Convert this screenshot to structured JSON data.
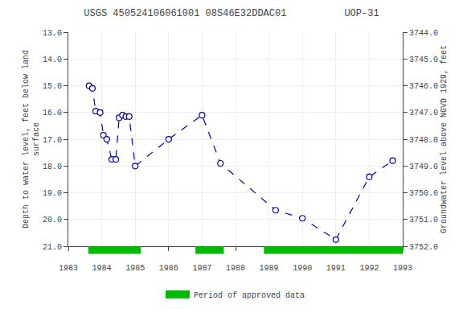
{
  "chart_data": {
    "type": "line",
    "title": "USGS 450524106061001 08S46E32DDAC01          UOP-31",
    "x_label": null,
    "y_label": "Depth to water level, feet below land\nsurface",
    "y2_label": "Groundwater level above NGVD 1929, feet",
    "x": [
      1983.62,
      1983.72,
      1983.82,
      1983.95,
      1984.05,
      1984.15,
      1984.3,
      1984.42,
      1984.52,
      1984.62,
      1984.72,
      1984.82,
      1985.0,
      1986.0,
      1987.0,
      1987.55,
      1989.2,
      1990.0,
      1991.0,
      1992.0,
      1992.7
    ],
    "values": [
      15.0,
      15.1,
      15.95,
      16.0,
      16.85,
      17.0,
      17.75,
      17.75,
      16.2,
      16.1,
      16.15,
      16.15,
      18.0,
      17.0,
      16.1,
      17.9,
      19.65,
      19.95,
      20.75,
      18.4,
      17.8
    ],
    "color": "#0000bb",
    "line_style": "dashed",
    "marker": "circle",
    "xlim": [
      1983,
      1993
    ],
    "xticks": [
      1983,
      1984,
      1985,
      1986,
      1987,
      1988,
      1989,
      1990,
      1991,
      1992,
      1993
    ],
    "ylim": [
      21.0,
      13.0
    ],
    "yticks": [
      {
        "value": 13.0,
        "label": "13.0"
      },
      {
        "value": 14.0,
        "label": "14.0"
      },
      {
        "value": 15.0,
        "label": "15.0"
      },
      {
        "value": 16.0,
        "label": "16.0"
      },
      {
        "value": 17.0,
        "label": "17.0"
      },
      {
        "value": 18.0,
        "label": "18.0"
      },
      {
        "value": 19.0,
        "label": "19.0"
      },
      {
        "value": 20.0,
        "label": "20.0"
      },
      {
        "value": 21.0,
        "label": "21.0"
      }
    ],
    "y2lim": [
      3752.0,
      3744.0
    ],
    "y2ticks": [
      {
        "value": 3752.0,
        "label": "3752.0"
      },
      {
        "value": 3751.0,
        "label": "3751.0"
      },
      {
        "value": 3750.0,
        "label": "3750.0"
      },
      {
        "value": 3749.0,
        "label": "3749.0"
      },
      {
        "value": 3748.0,
        "label": "3748.0"
      },
      {
        "value": 3747.0,
        "label": "3747.0"
      },
      {
        "value": 3746.0,
        "label": "3746.0"
      },
      {
        "value": 3745.0,
        "label": "3745.0"
      },
      {
        "value": 3744.0,
        "label": "3744.0"
      }
    ],
    "periods": {
      "name": "Period of approved data",
      "color": "#00bb00",
      "ranges": [
        [
          1983.6,
          1985.17
        ],
        [
          1986.8,
          1987.65
        ],
        [
          1988.85,
          1993.0
        ]
      ]
    },
    "grid": true
  }
}
